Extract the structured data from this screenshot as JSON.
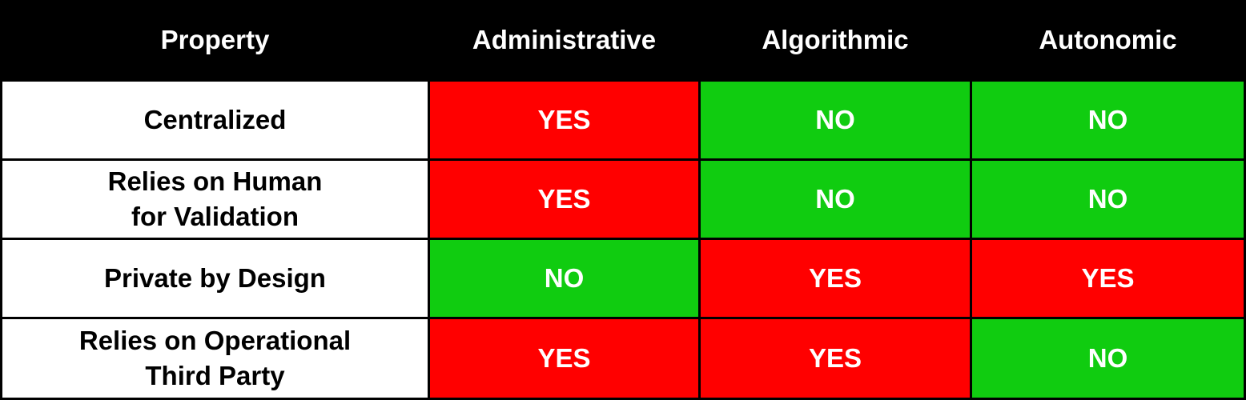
{
  "colors": {
    "header_bg": "#000000",
    "yes": "#ff0000",
    "no": "#10cc10"
  },
  "table": {
    "headers": [
      "Property",
      "Administrative",
      "Algorithmic",
      "Autonomic"
    ],
    "rows": [
      {
        "property": "Centralized",
        "values": [
          "YES",
          "NO",
          "NO"
        ]
      },
      {
        "property": "Relies on Human\nfor Validation",
        "values": [
          "YES",
          "NO",
          "NO"
        ]
      },
      {
        "property": "Private by Design",
        "values": [
          "NO",
          "YES",
          "YES"
        ]
      },
      {
        "property": "Relies on Operational\nThird Party",
        "values": [
          "YES",
          "YES",
          "NO"
        ]
      }
    ]
  }
}
